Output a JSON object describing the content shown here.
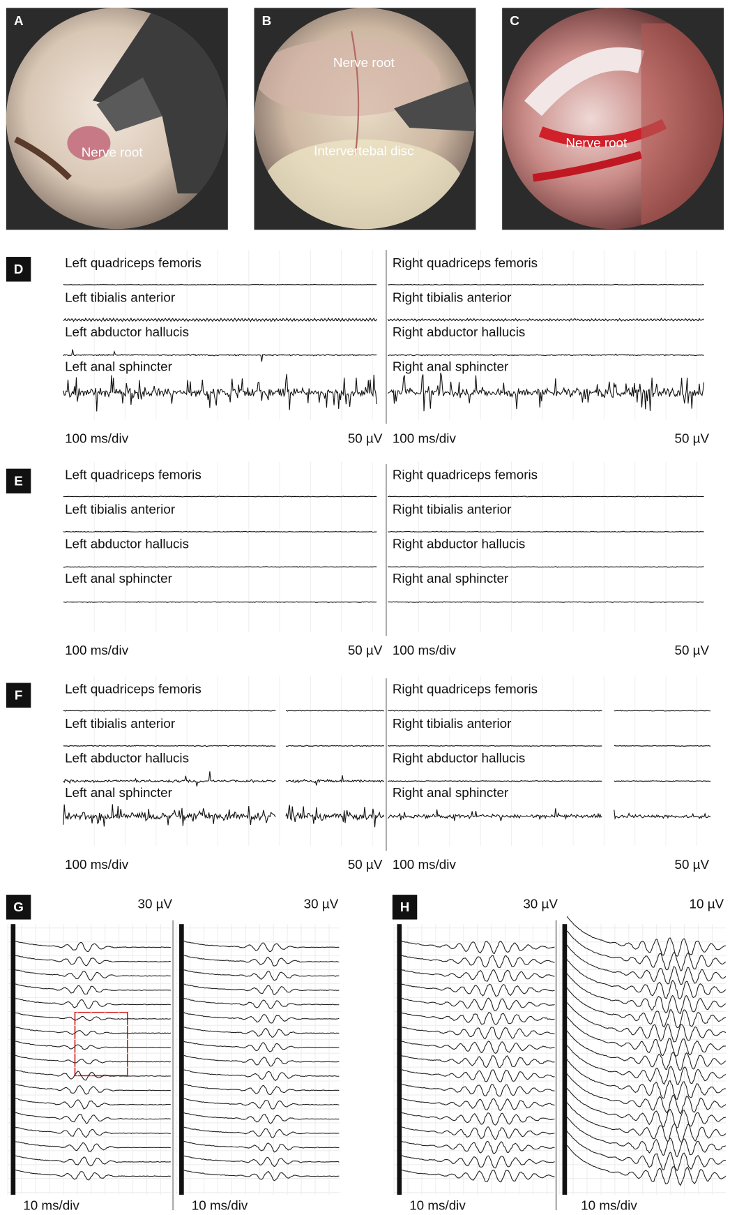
{
  "photos": [
    {
      "letter": "A",
      "labels": [
        "Nerve root"
      ]
    },
    {
      "letter": "B",
      "labels": [
        "Nerve root",
        "Intervertebal disc"
      ]
    },
    {
      "letter": "C",
      "labels": [
        "Nerve root"
      ]
    }
  ],
  "recordings": [
    {
      "letter": "D",
      "left": {
        "channels": [
          "Left quadriceps femoris",
          "Left tibialis anterior",
          "Left abductor hallucis",
          "Left anal sphincter"
        ],
        "time_scale": "100 ms/div",
        "amplitude_scale": "50 µV"
      },
      "right": {
        "channels": [
          "Right quadriceps femoris",
          "Right tibialis anterior",
          "Right abductor hallucis",
          "Right anal sphincter"
        ],
        "time_scale": "100 ms/div",
        "amplitude_scale": "50 µV"
      }
    },
    {
      "letter": "E",
      "left": {
        "channels": [
          "Left quadriceps femoris",
          "Left tibialis anterior",
          "Left abductor hallucis",
          "Left anal sphincter"
        ],
        "time_scale": "100 ms/div",
        "amplitude_scale": "50 µV"
      },
      "right": {
        "channels": [
          "Right quadriceps femoris",
          "Right tibialis anterior",
          "Right abductor hallucis",
          "Right anal sphincter"
        ],
        "time_scale": "100 ms/div",
        "amplitude_scale": "50 µV"
      }
    },
    {
      "letter": "F",
      "left": {
        "channels": [
          "Left quadriceps femoris",
          "Left tibialis anterior",
          "Left abductor hallucis",
          "Left anal sphincter"
        ],
        "time_scale": "100 ms/div",
        "amplitude_scale": "50 µV"
      },
      "right": {
        "channels": [
          "Right quadriceps femoris",
          "Right tibialis anterior",
          "Right abductor hallucis",
          "Right anal sphincter"
        ],
        "time_scale": "100 ms/div",
        "amplitude_scale": "50 µV"
      }
    }
  ],
  "evoked": [
    {
      "letter": "G",
      "left": {
        "amplitude_scale": "30 µV",
        "time_scale": "10 ms/div"
      },
      "right": {
        "amplitude_scale": "30 µV",
        "time_scale": "10 ms/div"
      }
    },
    {
      "letter": "H",
      "left": {
        "amplitude_scale": "30 µV",
        "time_scale": "10 ms/div"
      },
      "right": {
        "amplitude_scale": "10 µV",
        "time_scale": "10 ms/div"
      }
    }
  ]
}
